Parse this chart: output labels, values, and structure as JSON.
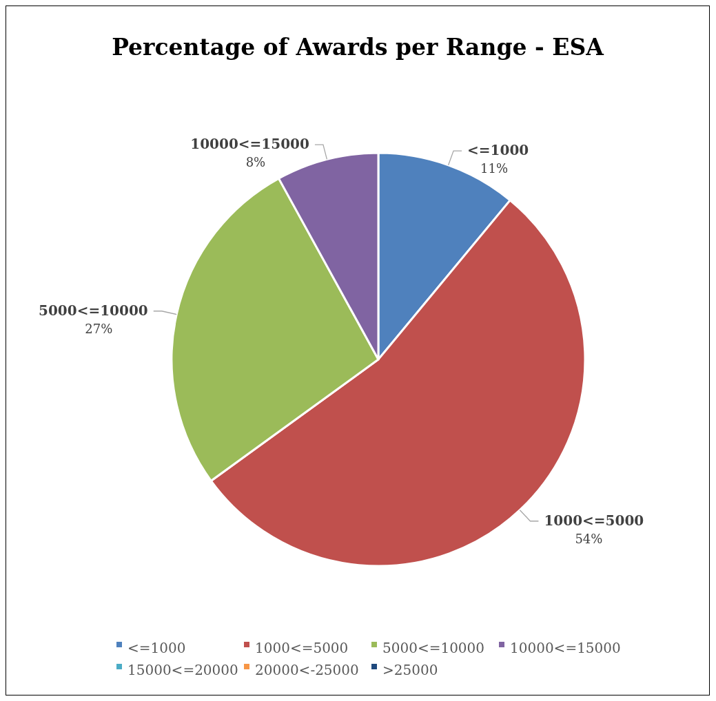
{
  "chart_data": {
    "type": "pie",
    "title": "Percentage of Awards per Range - ESA",
    "categories": [
      "<=1000",
      "1000<=5000",
      "5000<=10000",
      "10000<=15000",
      "15000<=20000",
      "20000<-25000",
      ">25000"
    ],
    "values": [
      11,
      54,
      27,
      8,
      0,
      0,
      0
    ],
    "colors": [
      "#4f81bd",
      "#c0504d",
      "#9bbb59",
      "#8064a2",
      "#4bacc6",
      "#f79646",
      "#1f497d"
    ],
    "value_labels": [
      "11%",
      "54%",
      "27%",
      "8%",
      null,
      null,
      null
    ],
    "legend": "bottom"
  }
}
